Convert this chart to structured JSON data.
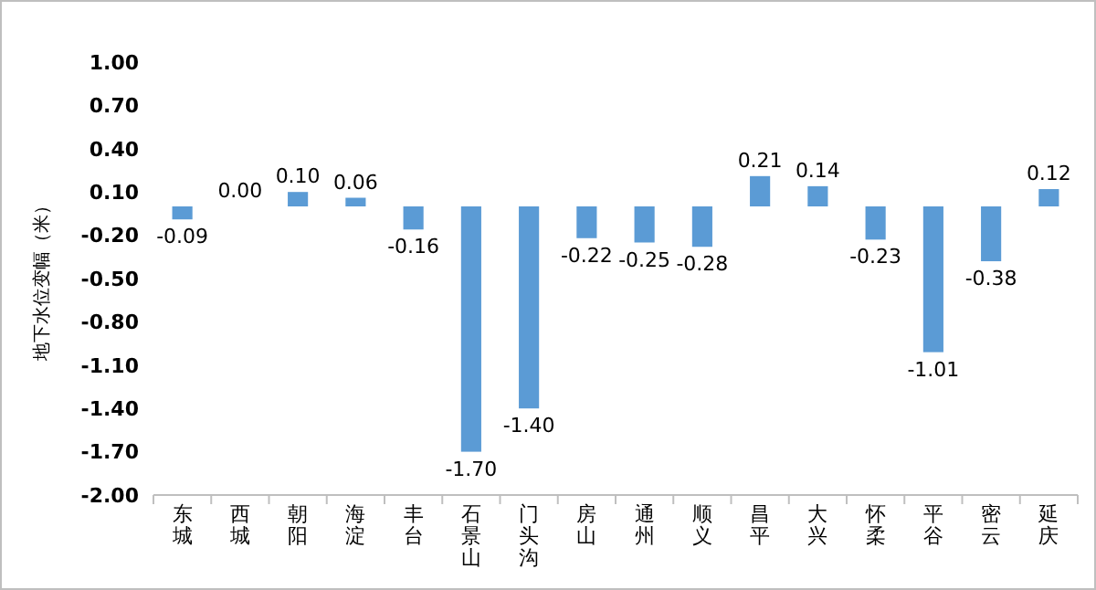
{
  "chart_data": {
    "type": "bar",
    "ylabel": "地下水位变幅（米）",
    "categories": [
      "东城",
      "西城",
      "朝阳",
      "海淀",
      "丰台",
      "石景山",
      "门头沟",
      "房山",
      "通州",
      "顺义",
      "昌平",
      "大兴",
      "怀柔",
      "平谷",
      "密云",
      "延庆"
    ],
    "values": [
      -0.09,
      0.0,
      0.1,
      0.06,
      -0.16,
      -1.7,
      -1.4,
      -0.22,
      -0.25,
      -0.28,
      0.21,
      0.14,
      -0.23,
      -1.01,
      -0.38,
      0.12
    ],
    "color": "#5b9bd5",
    "ylim": [
      -2.0,
      1.0
    ],
    "yticks": [
      {
        "value": 1.0,
        "label": "1.00"
      },
      {
        "value": 0.7,
        "label": "0.70"
      },
      {
        "value": 0.4,
        "label": "0.40"
      },
      {
        "value": 0.1,
        "label": "0.10"
      },
      {
        "value": -0.2,
        "label": "-0.20"
      },
      {
        "value": -0.5,
        "label": "-0.50"
      },
      {
        "value": -0.8,
        "label": "-0.80"
      },
      {
        "value": -1.1,
        "label": "-1.10"
      },
      {
        "value": -1.4,
        "label": "-1.40"
      },
      {
        "value": -1.7,
        "label": "-1.70"
      },
      {
        "value": -2.0,
        "label": "-2.00"
      }
    ],
    "value_labels": [
      "-0.09",
      "0.00",
      "0.10",
      "0.06",
      "-0.16",
      "-1.70",
      "-1.40",
      "-0.22",
      "-0.25",
      "-0.28",
      "0.21",
      "0.14",
      "-0.23",
      "-1.01",
      "-0.38",
      "0.12"
    ],
    "grid": false
  }
}
